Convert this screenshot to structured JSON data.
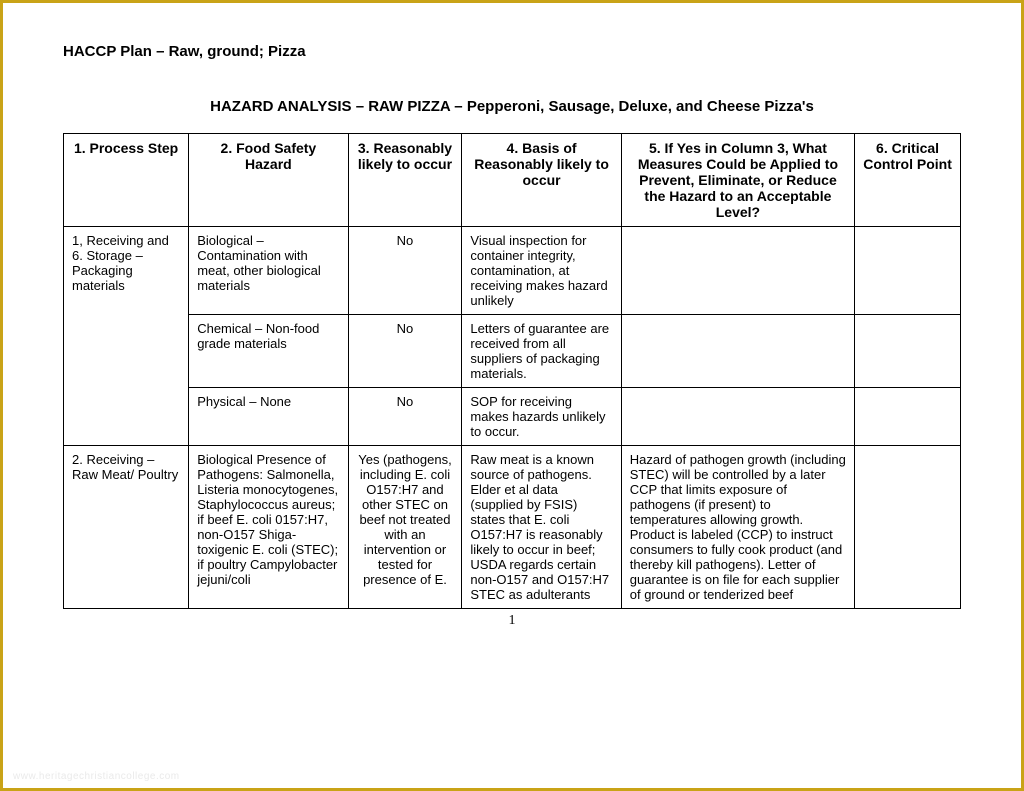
{
  "doc_title": "HACCP Plan – Raw, ground;  Pizza",
  "section_title": "HAZARD ANALYSIS – RAW PIZZA – Pepperoni, Sausage, Deluxe, and Cheese Pizza's",
  "columns": [
    "1. Process Step",
    "2. Food Safety Hazard",
    "3. Reasonably likely to occur",
    "4. Basis of Reasonably likely to occur",
    "5. If Yes in Column 3, What Measures Could be Applied to Prevent, Eliminate, or Reduce the Hazard to an Acceptable Level?",
    "6. Critical Control Point"
  ],
  "col_widths": [
    "110px",
    "140px",
    "100px",
    "140px",
    "205px",
    "93px"
  ],
  "rows": [
    {
      "process": "1, Receiving  and 6. Storage – Packaging materials",
      "rowspan": 3,
      "hazard": "Biological – Contamination with meat, other biological materials",
      "likely": "No",
      "basis": "Visual inspection for container integrity, contamination, at receiving makes hazard unlikely",
      "measures": "",
      "ccp": ""
    },
    {
      "hazard": "Chemical – Non-food grade materials",
      "likely": "No",
      "basis": "Letters of guarantee are received from all suppliers of packaging materials.",
      "measures": "",
      "ccp": ""
    },
    {
      "hazard": "Physical – None",
      "likely": "No",
      "basis": "SOP for receiving makes hazards unlikely to occur.",
      "measures": "",
      "ccp": ""
    },
    {
      "process": "2. Receiving – Raw Meat/ Poultry",
      "rowspan": 1,
      "hazard": "Biological  Presence of Pathogens: Salmonella, Listeria monocytogenes, Staphylococcus aureus; if beef E. coli 0157:H7, non-O157 Shiga-toxigenic E. coli (STEC); if poultry Campylobacter jejuni/coli",
      "likely": "Yes (pathogens, including E. coli O157:H7 and other STEC on beef not treated with an intervention or tested for presence of E.",
      "basis": "Raw meat is a known source of pathogens. Elder et al data (supplied by FSIS) states that E. coli O157:H7 is reasonably likely to occur in beef; USDA regards certain non-O157 and O157:H7 STEC as adulterants",
      "measures": "Hazard of pathogen growth (including STEC) will be controlled by a later CCP that limits exposure of pathogens (if present) to temperatures allowing growth. Product is labeled (CCP) to instruct consumers to fully cook product (and thereby kill pathogens).  Letter of guarantee is on file for each supplier of ground or tenderized beef",
      "ccp": ""
    }
  ],
  "page_number": "1",
  "watermark": "www.heritagechristiancollege.com"
}
